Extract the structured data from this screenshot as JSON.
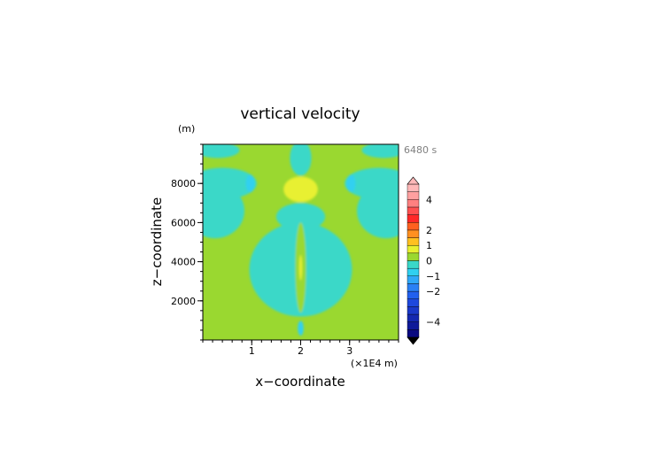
{
  "chart_data": {
    "type": "heatmap",
    "title": "vertical velocity",
    "time_label": "6480 s",
    "xlabel": "x−coordinate",
    "ylabel": "z−coordinate",
    "x_unit_label": "(×1E4 m)",
    "y_unit_label": "(m)",
    "xlim": [
      0,
      4
    ],
    "ylim": [
      0,
      10000
    ],
    "x_ticks": [
      {
        "value": 1,
        "label": "1"
      },
      {
        "value": 2,
        "label": "2"
      },
      {
        "value": 3,
        "label": "3"
      }
    ],
    "y_ticks": [
      {
        "value": 2000,
        "label": "2000"
      },
      {
        "value": 4000,
        "label": "4000"
      },
      {
        "value": 6000,
        "label": "6000"
      },
      {
        "value": 8000,
        "label": "8000"
      }
    ],
    "colorbar": {
      "levels": [
        -5,
        -4.5,
        -4,
        -3.5,
        -3,
        -2.5,
        -2,
        -1.5,
        -1,
        -0.5,
        0,
        0.5,
        1,
        1.5,
        2,
        2.5,
        3,
        3.5,
        4,
        4.5,
        5
      ],
      "colors": [
        "#0a0a80",
        "#0f1a99",
        "#1428b0",
        "#1a38c8",
        "#1e48dd",
        "#2260ee",
        "#2a80f5",
        "#30a8f8",
        "#30d0f0",
        "#3ad8c8",
        "#9ad830",
        "#e8f030",
        "#ffc020",
        "#ff9020",
        "#ff6020",
        "#ff2828",
        "#ff5050",
        "#ff8080",
        "#ffa0a0",
        "#ffb8b8"
      ],
      "over_color": "#ffb8b8",
      "under_color": "#000000",
      "tick_labels": [
        {
          "value": 4,
          "label": "4"
        },
        {
          "value": 2,
          "label": "2"
        },
        {
          "value": 1,
          "label": "1"
        },
        {
          "value": 0,
          "label": "0"
        },
        {
          "value": -1,
          "label": "−1"
        },
        {
          "value": -2,
          "label": "−2"
        },
        {
          "value": -4,
          "label": "−4"
        }
      ]
    },
    "background_value": 0.25,
    "regions": [
      {
        "label": "upward-plume-left",
        "value": -0.25,
        "cx": 0.4,
        "cy": 8000,
        "rx": 0.7,
        "ry": 800
      },
      {
        "label": "upward-plume-right",
        "value": -0.25,
        "cx": 3.6,
        "cy": 8000,
        "rx": 0.7,
        "ry": 800
      },
      {
        "label": "left-arm",
        "value": -0.25,
        "cx": 0.25,
        "cy": 6600,
        "rx": 0.6,
        "ry": 1400
      },
      {
        "label": "right-arm",
        "value": -0.25,
        "cx": 3.75,
        "cy": 6600,
        "rx": 0.6,
        "ry": 1400
      },
      {
        "label": "left-top-band",
        "value": -0.25,
        "cx": 0.3,
        "cy": 9700,
        "rx": 0.45,
        "ry": 400
      },
      {
        "label": "right-top-band",
        "value": -0.25,
        "cx": 3.7,
        "cy": 9700,
        "rx": 0.45,
        "ry": 400
      },
      {
        "label": "center-column",
        "value": -0.25,
        "cx": 2.0,
        "cy": 3600,
        "rx": 1.05,
        "ry": 2400
      },
      {
        "label": "center-upper",
        "value": -0.25,
        "cx": 2.0,
        "cy": 6300,
        "rx": 0.5,
        "ry": 700
      },
      {
        "label": "center-top",
        "value": -0.25,
        "cx": 2.0,
        "cy": 9300,
        "rx": 0.22,
        "ry": 900
      },
      {
        "label": "cyan-core-left",
        "value": -1.0,
        "cx": 0.97,
        "cy": 8000,
        "rx": 0.09,
        "ry": 450
      },
      {
        "label": "cyan-core-right",
        "value": -1.0,
        "cx": 3.03,
        "cy": 8000,
        "rx": 0.09,
        "ry": 450
      },
      {
        "label": "cyan-bottom",
        "value": -1.0,
        "cx": 2.0,
        "cy": 600,
        "rx": 0.06,
        "ry": 380
      },
      {
        "label": "center-yellow-column",
        "value": 0.25,
        "cx": 2.0,
        "cy": 3700,
        "rx": 0.11,
        "ry": 2300
      },
      {
        "label": "updraft-upper",
        "value": 0.75,
        "cx": 2.0,
        "cy": 7700,
        "rx": 0.35,
        "ry": 650
      },
      {
        "label": "updraft-line",
        "value": 0.75,
        "cx": 2.0,
        "cy": 3700,
        "rx": 0.03,
        "ry": 650
      }
    ]
  }
}
